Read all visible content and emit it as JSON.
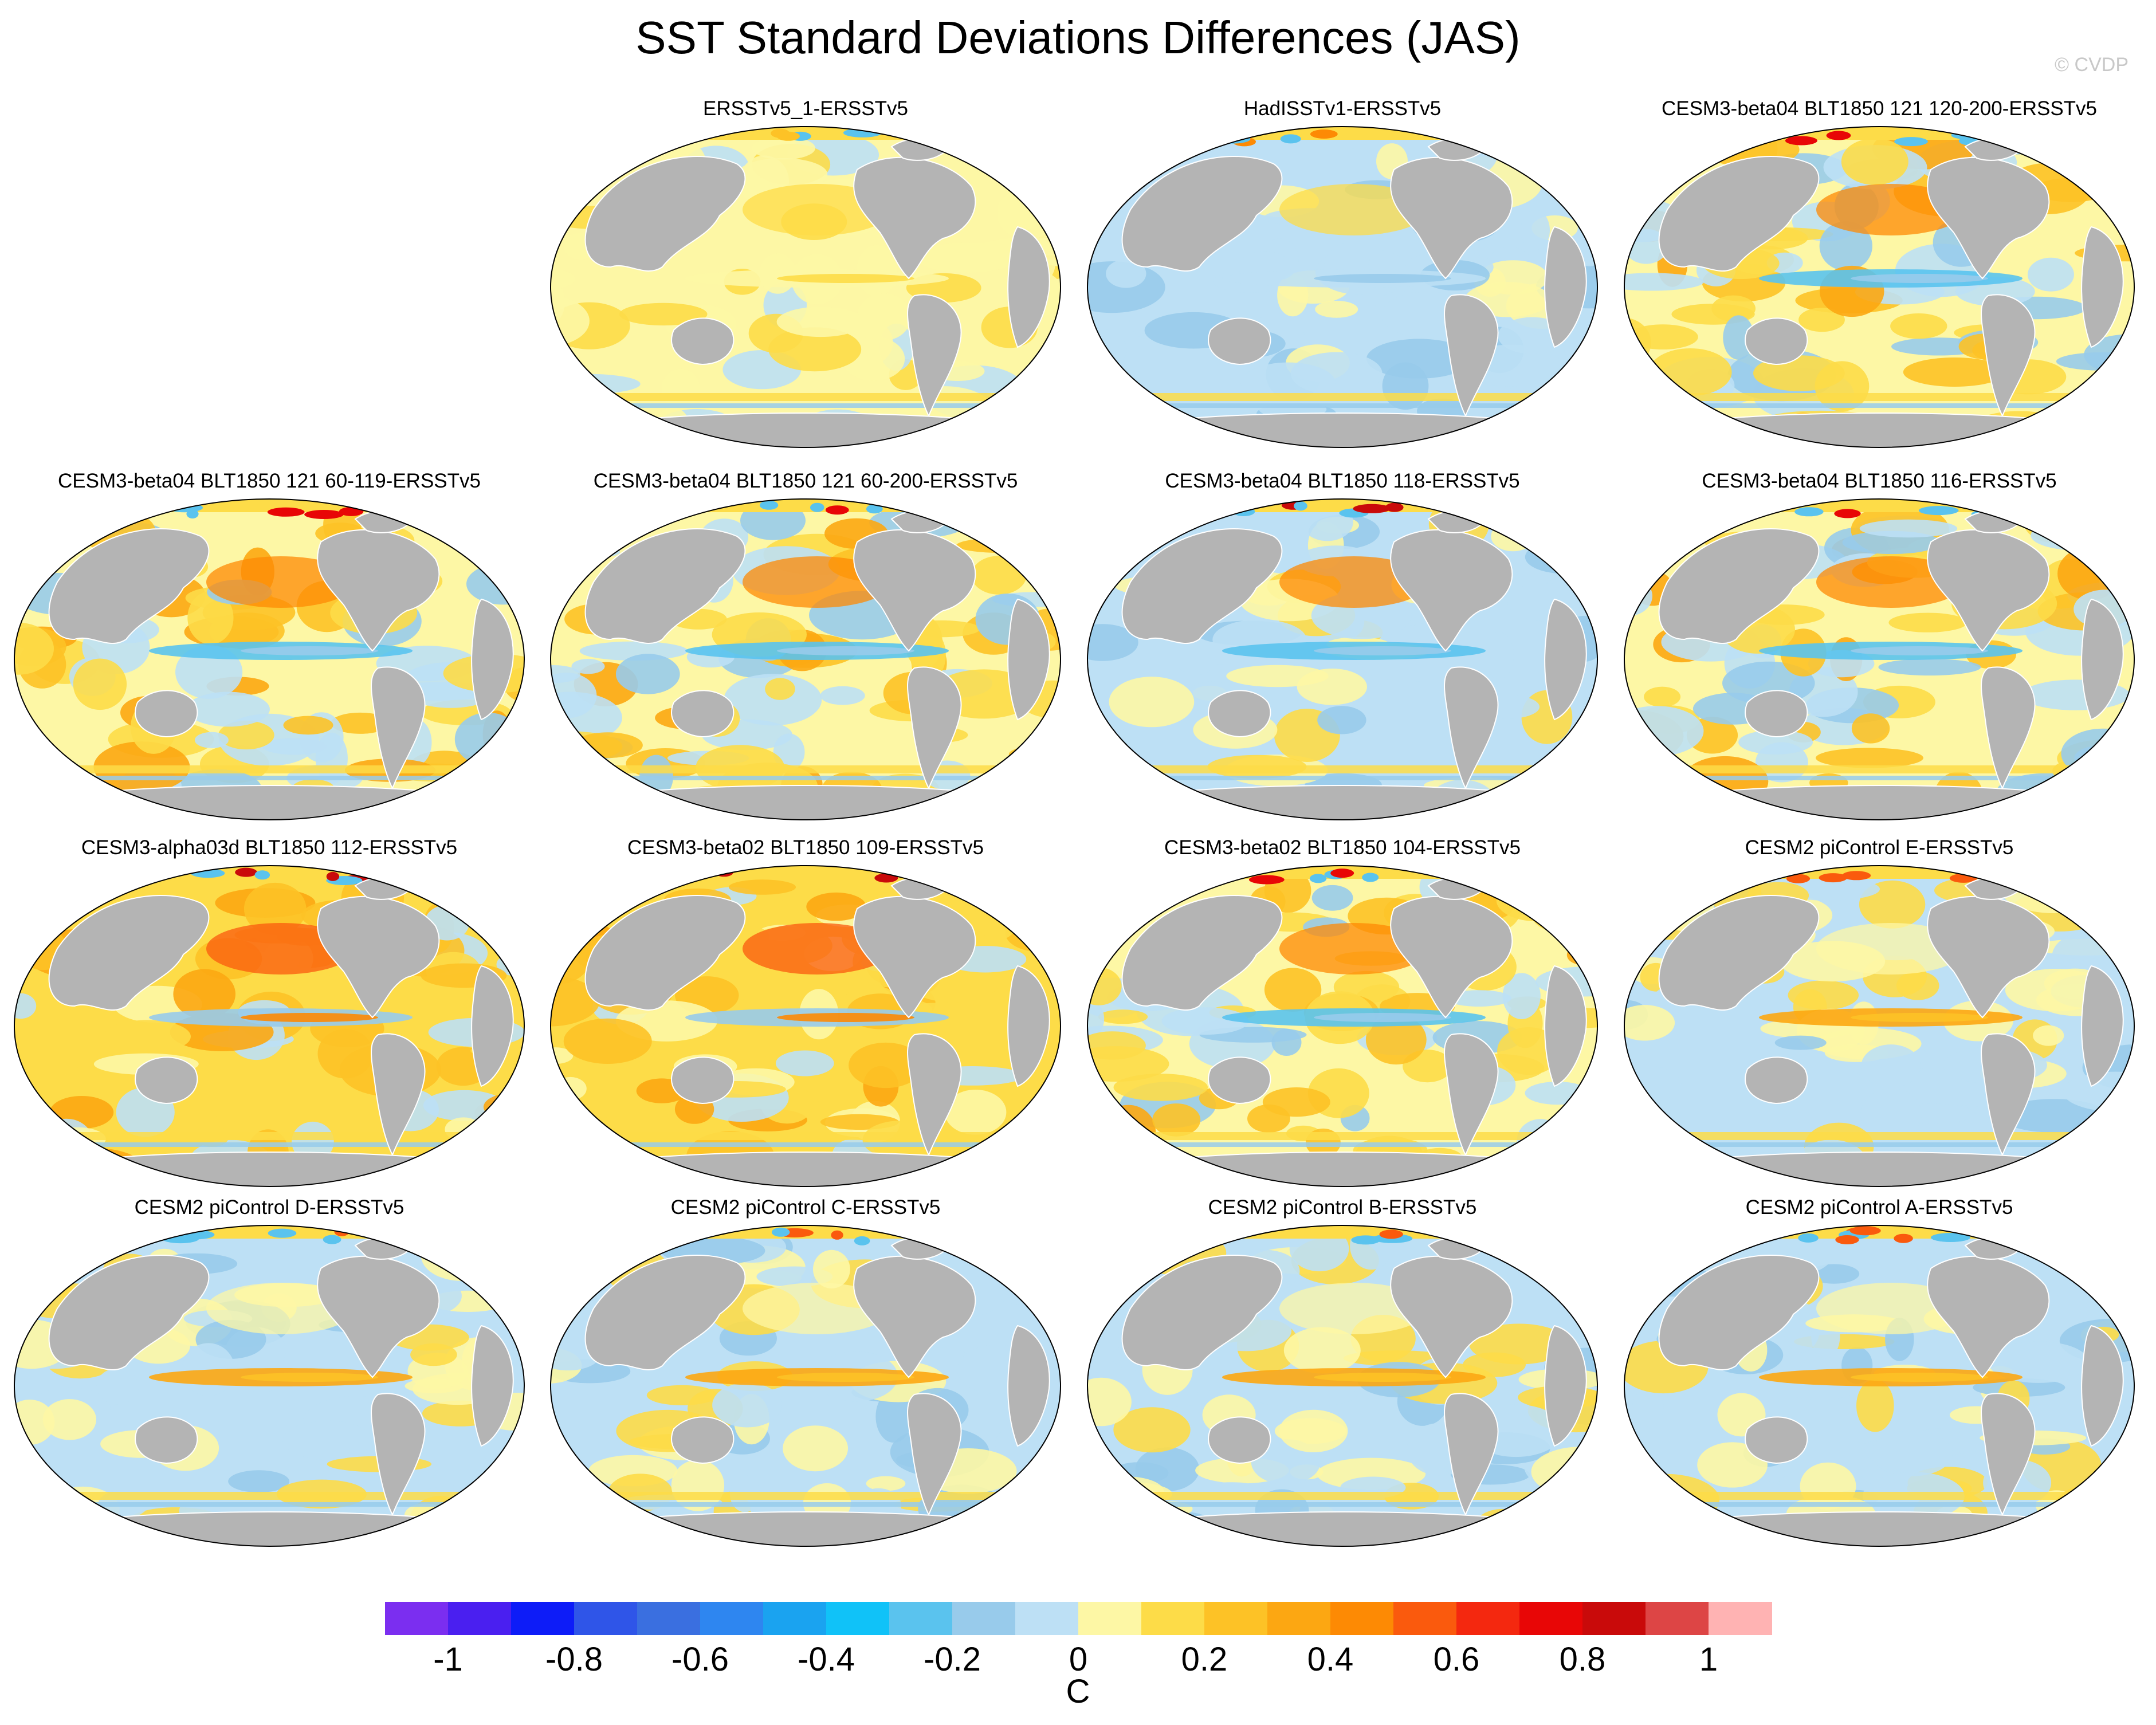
{
  "title": "SST Standard Deviations Differences (JAS)",
  "credit": "© CVDP",
  "panels": [
    {
      "id": "p1",
      "title": "ERSSTv5_1-ERSSTv5",
      "pattern": "obs_warm"
    },
    {
      "id": "p2",
      "title": "HadISSTv1-ERSSTv5",
      "pattern": "obs_cool"
    },
    {
      "id": "p3",
      "title": "CESM3-beta04 BLT1850 121 120-200-ERSSTv5",
      "pattern": "model_mixed"
    },
    {
      "id": "p4",
      "title": "CESM3-beta04 BLT1850 121 60-119-ERSSTv5",
      "pattern": "model_mixed"
    },
    {
      "id": "p5",
      "title": "CESM3-beta04 BLT1850 121 60-200-ERSSTv5",
      "pattern": "model_mixed"
    },
    {
      "id": "p6",
      "title": "CESM3-beta04 BLT1850 118-ERSSTv5",
      "pattern": "model_cool"
    },
    {
      "id": "p7",
      "title": "CESM3-beta04 BLT1850 116-ERSSTv5",
      "pattern": "model_mixed"
    },
    {
      "id": "p8",
      "title": "CESM3-alpha03d BLT1850 112-ERSSTv5",
      "pattern": "model_warm"
    },
    {
      "id": "p9",
      "title": "CESM3-beta02 BLT1850 109-ERSSTv5",
      "pattern": "model_warm"
    },
    {
      "id": "p10",
      "title": "CESM3-beta02 BLT1850 104-ERSSTv5",
      "pattern": "model_mixed"
    },
    {
      "id": "p11",
      "title": "CESM2 piControl E-ERSSTv5",
      "pattern": "cesm2"
    },
    {
      "id": "p12",
      "title": "CESM2 piControl D-ERSSTv5",
      "pattern": "cesm2"
    },
    {
      "id": "p13",
      "title": "CESM2 piControl C-ERSSTv5",
      "pattern": "cesm2"
    },
    {
      "id": "p14",
      "title": "CESM2 piControl B-ERSSTv5",
      "pattern": "cesm2"
    },
    {
      "id": "p15",
      "title": "CESM2 piControl A-ERSSTv5",
      "pattern": "cesm2"
    }
  ],
  "colorbar": {
    "colors": [
      "#7b2ef0",
      "#4a1ff0",
      "#0d1cf8",
      "#2f55e8",
      "#3a6fe0",
      "#2e86f0",
      "#1aa3f0",
      "#10c2f8",
      "#5ac3ee",
      "#98cbeb",
      "#bde0f5",
      "#fdf7a5",
      "#fddc48",
      "#fdc226",
      "#fca712",
      "#fd8a04",
      "#fa5a0d",
      "#f4280f",
      "#e80606",
      "#c90a0a",
      "#dd4545",
      "#ffb3b3"
    ],
    "tick_labels": [
      "-1",
      "-0.8",
      "-0.6",
      "-0.4",
      "-0.2",
      "0",
      "0.2",
      "0.4",
      "0.6",
      "0.8",
      "1"
    ],
    "units": "C"
  },
  "colors": {
    "land": "#b4b4b4",
    "ocean_neutral_warm": "#fdf7a5",
    "ocean_neutral_cool": "#bde0f5"
  }
}
